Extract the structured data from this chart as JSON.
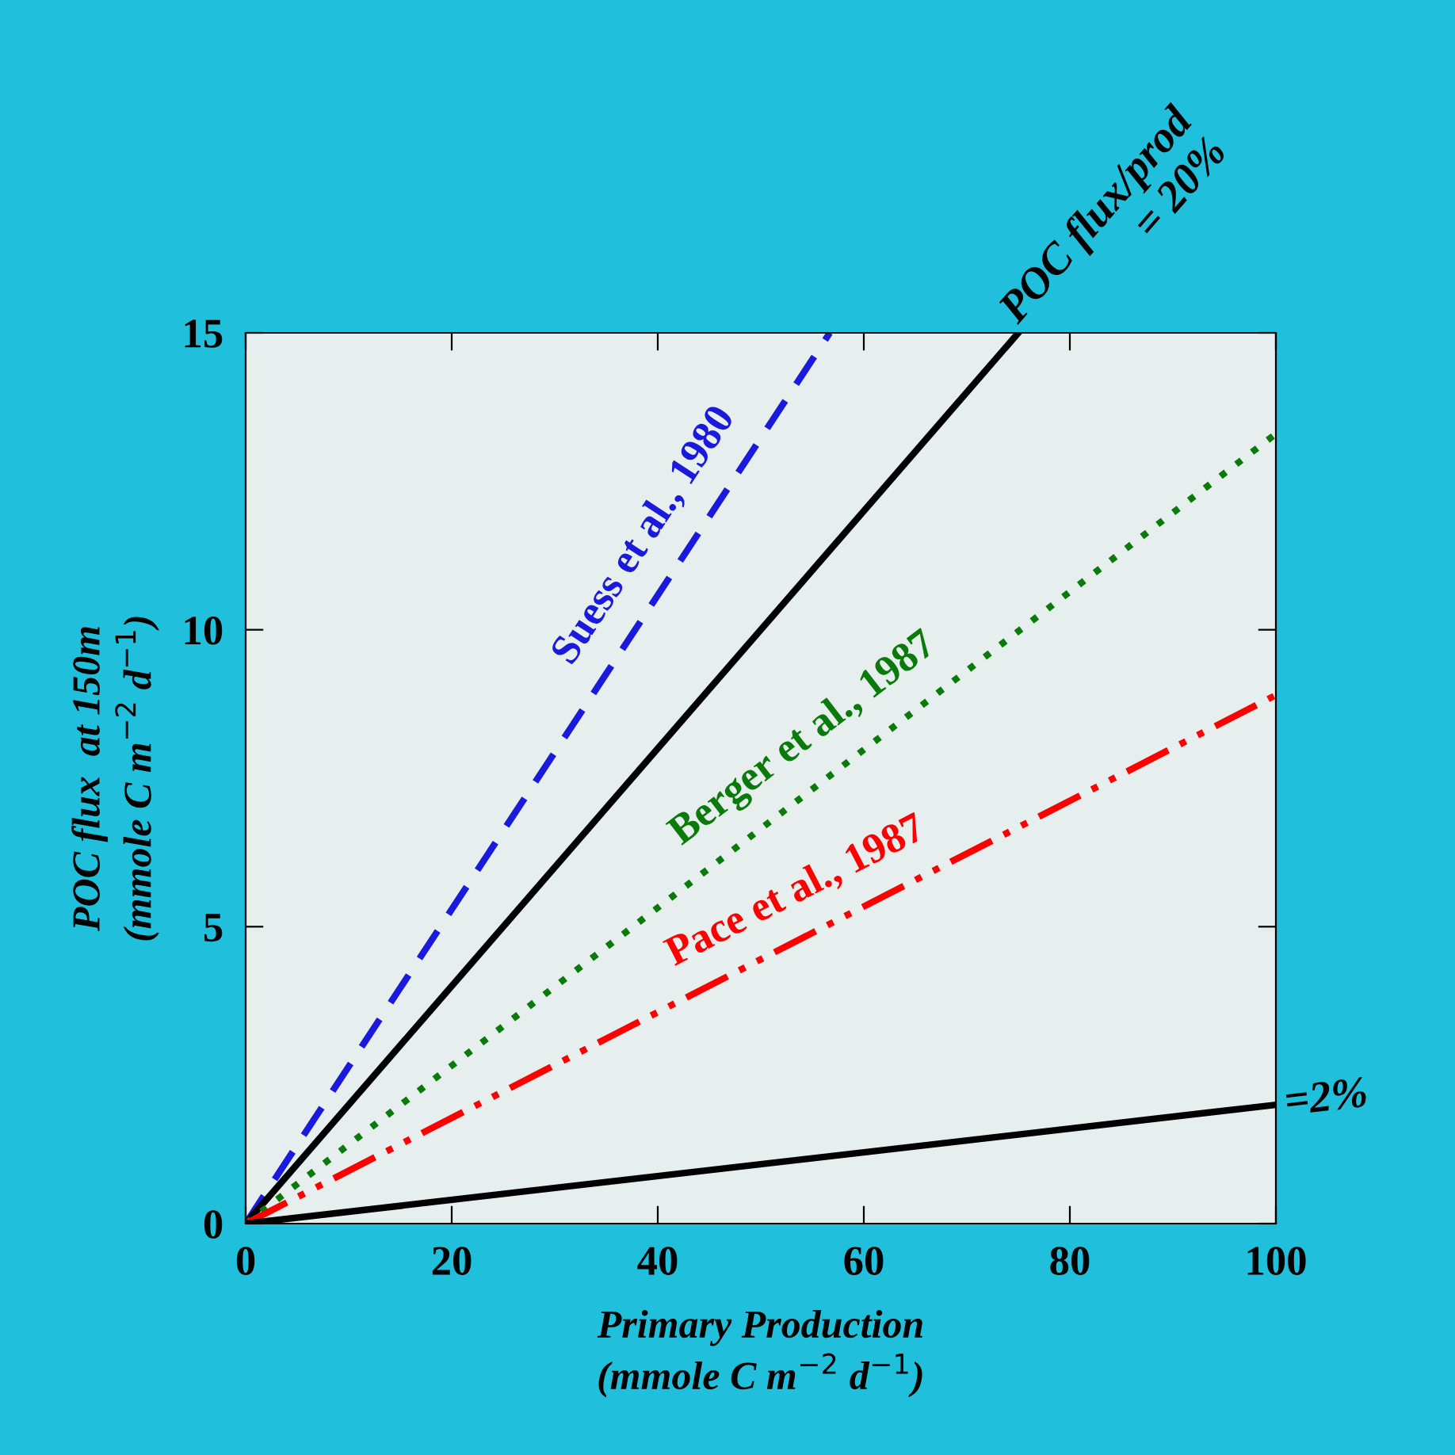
{
  "chart_data": {
    "type": "line",
    "xlabel": "Primary Production\n(mmole C m$^{−2}$ d$^{−1}$)",
    "ylabel": "POC flux  at 150m\n(mmole C m$^{−2}$ d$^{−1}$)",
    "xlim": [
      0,
      100
    ],
    "ylim": [
      0,
      15
    ],
    "xticks": [
      0,
      20,
      40,
      60,
      80,
      100
    ],
    "yticks": [
      0,
      5,
      10,
      15
    ],
    "grid": false,
    "legend": false,
    "marker": "none",
    "series": [
      {
        "x": [
          0,
          56.7
        ],
        "values": [
          0,
          15
        ],
        "color": "#1a1adc",
        "line_style": "dashed"
      },
      {
        "x": [
          0,
          75
        ],
        "values": [
          0,
          15
        ],
        "color": "#000000",
        "line_style": "solid"
      },
      {
        "x": [
          0,
          100
        ],
        "values": [
          0,
          13.3
        ],
        "color": "#0a7a0a",
        "line_style": "dotted"
      },
      {
        "x": [
          0,
          100
        ],
        "values": [
          0,
          8.9
        ],
        "color": "#ff0000",
        "line_style": "dashdotdot"
      },
      {
        "x": [
          0,
          100
        ],
        "values": [
          0,
          2
        ],
        "color": "#000000",
        "line_style": "solid"
      }
    ],
    "annotations": [
      {
        "text": "Suess et al., 1980",
        "x": 42,
        "y": 11.1
      },
      {
        "text": "POC flux/prod\n= 20%",
        "x": 75,
        "y": 15
      },
      {
        "text": "Berger et al., 1987",
        "x": 57,
        "y": 7.6
      },
      {
        "text": "Pace et al., 1987",
        "x": 56,
        "y": 5
      },
      {
        "text": "=2%",
        "x": 100,
        "y": 2
      }
    ]
  }
}
